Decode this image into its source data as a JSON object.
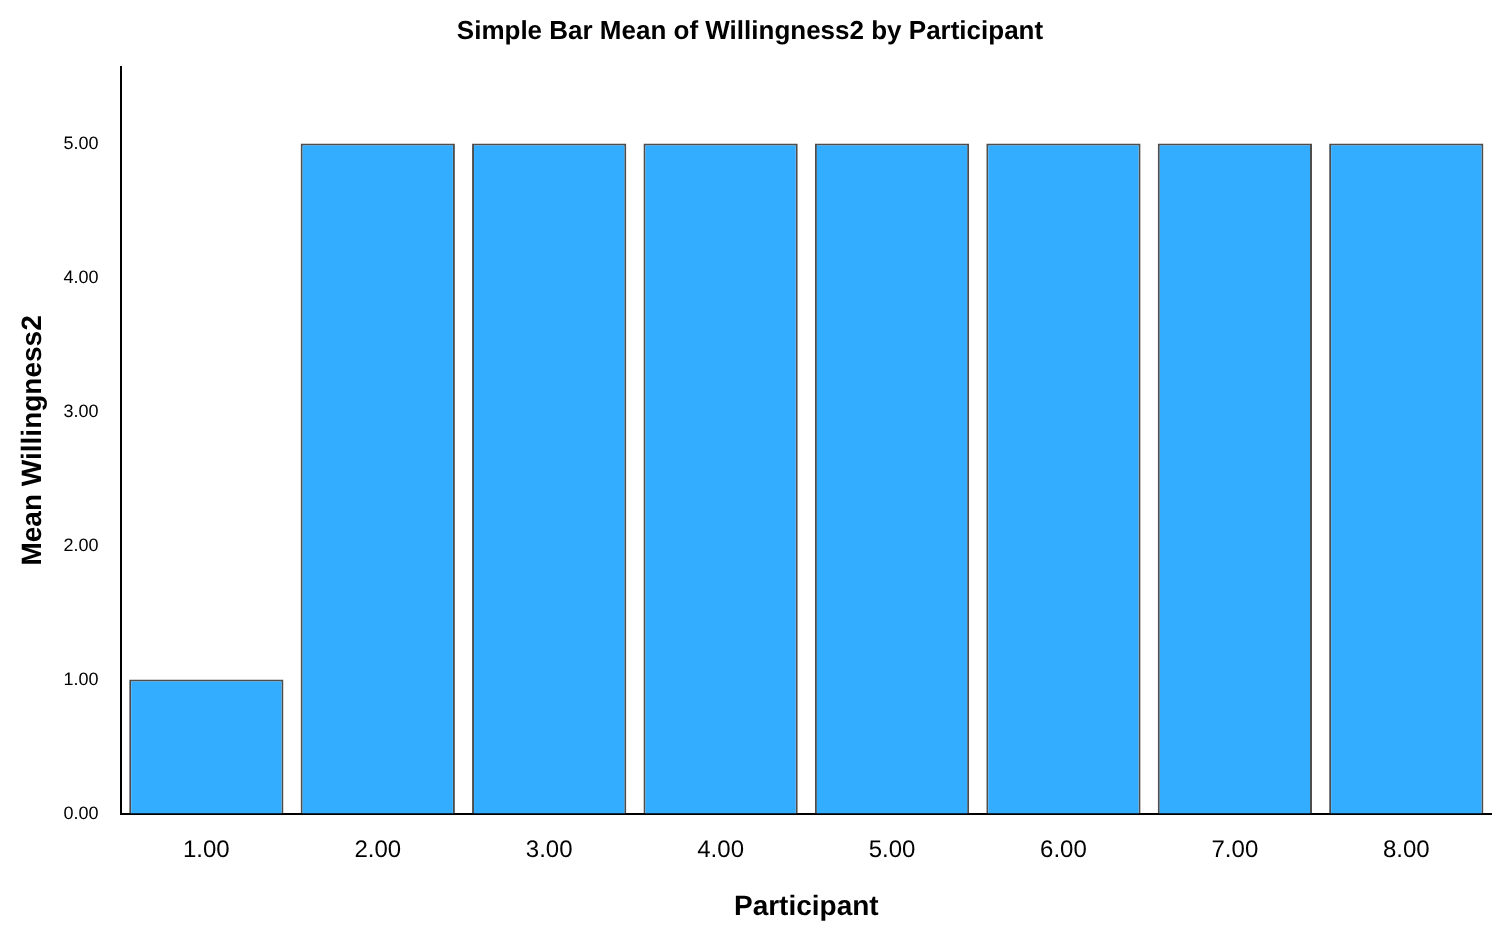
{
  "chart_data": {
    "type": "bar",
    "title": "Simple Bar Mean of Willingness2 by Participant",
    "xlabel": "Participant",
    "ylabel": "Mean Willingness2",
    "categories": [
      "1.00",
      "2.00",
      "3.00",
      "4.00",
      "5.00",
      "6.00",
      "7.00",
      "8.00"
    ],
    "values": [
      1,
      5,
      5,
      5,
      5,
      5,
      5,
      5
    ],
    "color": "#33adff",
    "ylim": [
      0,
      5.57
    ],
    "yticks": [
      {
        "value": 0,
        "label": "0.00"
      },
      {
        "value": 1,
        "label": "1.00"
      },
      {
        "value": 2,
        "label": "2.00"
      },
      {
        "value": 3,
        "label": "3.00"
      },
      {
        "value": 4,
        "label": "4.00"
      },
      {
        "value": 5,
        "label": "5.00"
      }
    ],
    "grid": false,
    "legend": false
  }
}
